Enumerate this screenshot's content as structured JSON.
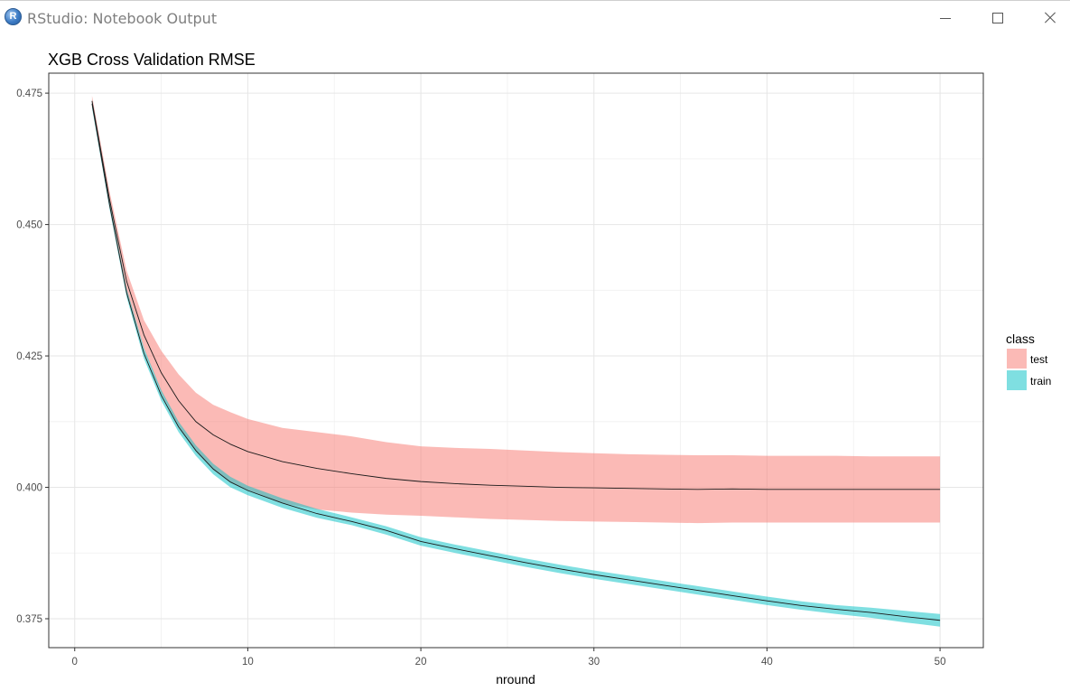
{
  "window": {
    "title": "RStudio: Notebook Output",
    "icon": "R"
  },
  "chart_data": {
    "type": "line",
    "title": "XGB Cross Validation RMSE",
    "xlabel": "nround",
    "ylabel": "",
    "xlim": [
      -1.5,
      52.5
    ],
    "ylim": [
      0.3695,
      0.4788
    ],
    "x_ticks": [
      0,
      10,
      20,
      30,
      40,
      50
    ],
    "y_ticks": [
      0.375,
      0.4,
      0.425,
      0.45,
      0.475
    ],
    "y_tick_labels": [
      "0.375",
      "0.400",
      "0.425",
      "0.450",
      "0.475"
    ],
    "grid": true,
    "legend": {
      "title": "class",
      "position": "right"
    },
    "x": [
      1,
      2,
      3,
      4,
      5,
      6,
      7,
      8,
      9,
      10,
      12,
      14,
      16,
      18,
      20,
      22,
      24,
      26,
      28,
      30,
      32,
      34,
      36,
      38,
      40,
      42,
      44,
      46,
      48,
      50
    ],
    "series": [
      {
        "name": "test",
        "color": "#F8766D",
        "mean": [
          0.4735,
          0.455,
          0.4392,
          0.429,
          0.4218,
          0.4165,
          0.4125,
          0.41,
          0.4082,
          0.4068,
          0.4049,
          0.4036,
          0.4026,
          0.4017,
          0.4011,
          0.4007,
          0.4004,
          0.4002,
          0.4,
          0.3999,
          0.3998,
          0.3997,
          0.3996,
          0.3997,
          0.3996,
          0.3996,
          0.3996,
          0.3996,
          0.3996,
          0.3996
        ],
        "lower": [
          0.4725,
          0.4535,
          0.4372,
          0.4263,
          0.418,
          0.4117,
          0.4068,
          0.4033,
          0.401,
          0.3995,
          0.397,
          0.3958,
          0.3952,
          0.3948,
          0.3946,
          0.3943,
          0.394,
          0.3938,
          0.3936,
          0.3935,
          0.3934,
          0.3933,
          0.3932,
          0.3933,
          0.3933,
          0.3933,
          0.3933,
          0.3933,
          0.3933,
          0.3933
        ],
        "upper": [
          0.4745,
          0.4565,
          0.4412,
          0.4318,
          0.426,
          0.4215,
          0.418,
          0.4157,
          0.4143,
          0.413,
          0.4113,
          0.4105,
          0.4097,
          0.4086,
          0.4078,
          0.4075,
          0.4073,
          0.407,
          0.4067,
          0.4065,
          0.4063,
          0.4062,
          0.4061,
          0.4061,
          0.406,
          0.406,
          0.406,
          0.4059,
          0.4059,
          0.4059
        ]
      },
      {
        "name": "train",
        "color": "#00BFC4",
        "mean": [
          0.473,
          0.454,
          0.437,
          0.4255,
          0.4175,
          0.4115,
          0.407,
          0.4035,
          0.401,
          0.3994,
          0.397,
          0.395,
          0.3935,
          0.3918,
          0.3897,
          0.3883,
          0.387,
          0.3857,
          0.3845,
          0.3834,
          0.3824,
          0.3814,
          0.3804,
          0.3794,
          0.3784,
          0.3775,
          0.3768,
          0.3762,
          0.3754,
          0.3747
        ],
        "lower": [
          0.4722,
          0.4532,
          0.4362,
          0.4245,
          0.4165,
          0.4105,
          0.406,
          0.4025,
          0.4,
          0.3985,
          0.3961,
          0.3942,
          0.3928,
          0.391,
          0.3889,
          0.3875,
          0.3862,
          0.3849,
          0.3837,
          0.3826,
          0.3816,
          0.3806,
          0.3796,
          0.3786,
          0.3776,
          0.3767,
          0.3759,
          0.3752,
          0.3743,
          0.3735
        ],
        "upper": [
          0.4738,
          0.4548,
          0.4378,
          0.4265,
          0.4185,
          0.4125,
          0.408,
          0.4045,
          0.402,
          0.4003,
          0.3979,
          0.3959,
          0.3943,
          0.3926,
          0.3905,
          0.3891,
          0.3878,
          0.3865,
          0.3853,
          0.3842,
          0.3832,
          0.3822,
          0.3812,
          0.3802,
          0.3792,
          0.3783,
          0.3776,
          0.3771,
          0.3765,
          0.3759
        ]
      }
    ]
  }
}
